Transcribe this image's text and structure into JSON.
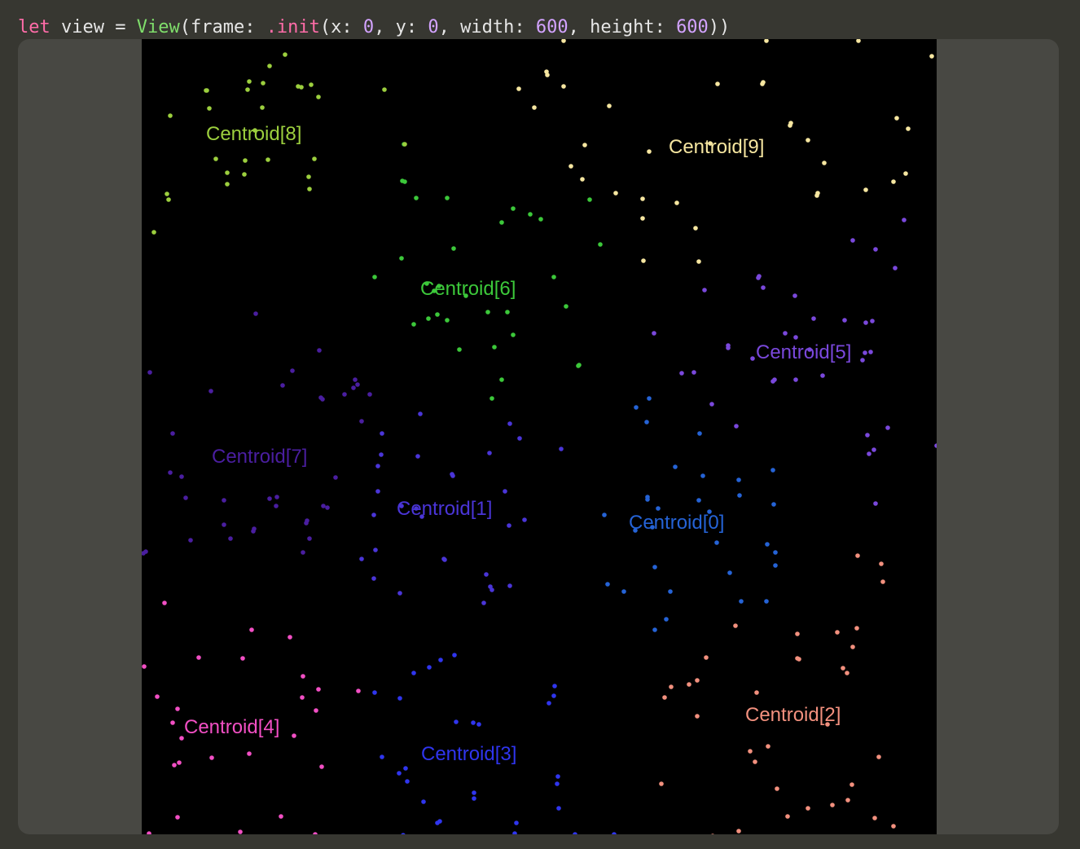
{
  "code": {
    "keyword": "let",
    "identifier": "view",
    "equals": "=",
    "type_name": "View",
    "open_paren": "(frame: ",
    "method": ".init",
    "args": [
      {
        "label": "(x: ",
        "value": "0"
      },
      {
        "label": ", y: ",
        "value": "0"
      },
      {
        "label": ", width: ",
        "value": "600"
      },
      {
        "label": ", height: ",
        "value": "600"
      }
    ],
    "close": "))"
  },
  "view": {
    "background": "#000000",
    "centroids": [
      {
        "label": "Centroid[0]",
        "color": "#2563d6"
      },
      {
        "label": "Centroid[1]",
        "color": "#4a35d8"
      },
      {
        "label": "Centroid[2]",
        "color": "#f2907e"
      },
      {
        "label": "Centroid[3]",
        "color": "#2f35ee"
      },
      {
        "label": "Centroid[4]",
        "color": "#f24fc4"
      },
      {
        "label": "Centroid[5]",
        "color": "#7a48dc"
      },
      {
        "label": "Centroid[6]",
        "color": "#3cc83a"
      },
      {
        "label": "Centroid[7]",
        "color": "#4a1ea0"
      },
      {
        "label": "Centroid[8]",
        "color": "#9ccf3e"
      },
      {
        "label": "Centroid[9]",
        "color": "#f6e6a0"
      }
    ]
  }
}
